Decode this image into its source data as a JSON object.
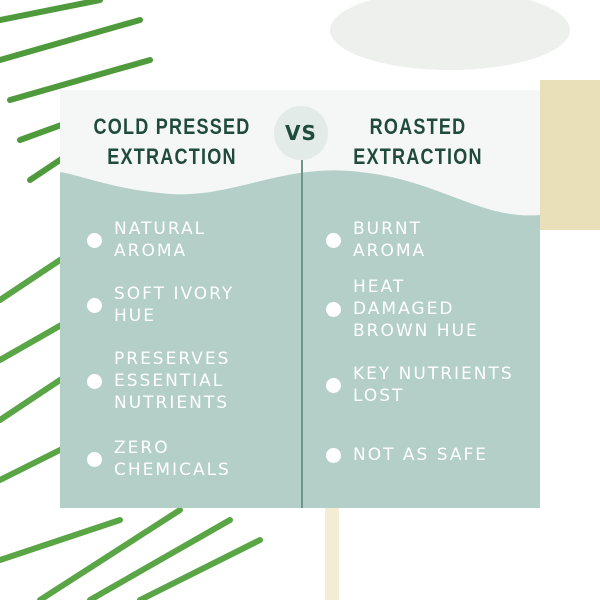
{
  "left": {
    "title": "COLD PRESSED\nEXTRACTION",
    "items": [
      "NATURAL\nAROMA",
      "SOFT IVORY\nHUE",
      "PRESERVES\nESSENTIAL\nNUTRIENTS",
      "ZERO\nCHEMICALS"
    ]
  },
  "vs_label": "VS",
  "right": {
    "title": "ROASTED\nEXTRACTION",
    "items": [
      "BURNT\nAROMA",
      "HEAT\nDAMAGED\nBROWN HUE",
      "KEY NUTRIENTS\nLOST",
      "NOT AS SAFE"
    ]
  },
  "colors": {
    "panel": "#b3cfc7",
    "header": "#f4f7f6",
    "title_text": "#1f4a3c",
    "item_text": "#ffffff"
  }
}
